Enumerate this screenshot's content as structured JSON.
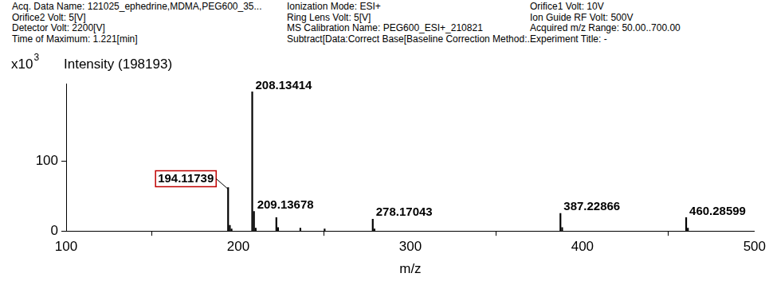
{
  "header": {
    "columns": [
      [
        "Acq. Data Name: 121025_ephedrine,MDMA,PEG600_35...",
        "Orifice2 Volt: 5[V]",
        "Detector Volt: 2200[V]",
        "Time of Maximum: 1.221[min]"
      ],
      [
        "Ionization Mode: ESI+",
        "Ring Lens Volt: 5[V]",
        "MS Calibration Name: PEG600_ESI+_210821",
        "Subtract[Data:Correct Base[Baseline Correction Method:..."
      ],
      [
        "Orifice1 Volt: 10V",
        "Ion Guide RF Volt: 500V",
        "Acquired m/z Range: 50.00..700.00",
        "Experiment Title: -"
      ]
    ]
  },
  "chart_data": {
    "type": "bar",
    "ylabel": "Intensity (198193)",
    "y_multiplier": {
      "base": "x10",
      "exponent": "3"
    },
    "xlabel": "m/z",
    "x": [
      194.11739,
      195.12,
      196.12,
      208.13414,
      209.13678,
      210.14,
      222.15,
      223.15,
      236.1,
      250.2,
      278.17043,
      279.17,
      387.22866,
      388.23,
      460.28599,
      461.29
    ],
    "values": [
      62,
      8,
      3,
      198.193,
      28,
      4,
      19,
      5,
      4,
      3,
      17,
      3,
      25,
      5,
      19,
      4
    ],
    "color": "#000000",
    "xlim": [
      100,
      500
    ],
    "xticks": [
      100,
      200,
      300,
      400,
      500
    ],
    "ylim": [
      0,
      210
    ],
    "yticks": [
      0,
      100
    ],
    "grid": false,
    "annotations": [
      {
        "x": 194.11739,
        "text": "194.11739",
        "color": "#c00000"
      },
      {
        "x": 208.13414,
        "text": "208.13414"
      },
      {
        "x": 209.13678,
        "text": "209.13678"
      },
      {
        "x": 278.17043,
        "text": "278.17043"
      },
      {
        "x": 387.22866,
        "text": "387.22866"
      },
      {
        "x": 460.28599,
        "text": "460.28599"
      }
    ]
  }
}
